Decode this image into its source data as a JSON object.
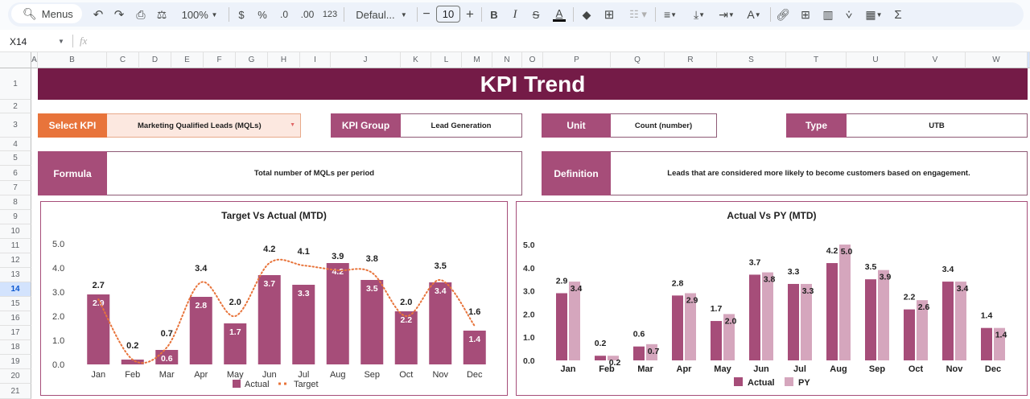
{
  "toolbar": {
    "search_label": "Menus",
    "zoom": "100%",
    "currency": "$",
    "percent": "%",
    "decrease_decimal": ".0",
    "increase_decimal": ".00",
    "more_formats": "123",
    "font": "Defaul...",
    "font_size": "10",
    "minus": "−",
    "plus": "+",
    "bold": "B",
    "italic": "I",
    "text_color": "A",
    "sum": "Σ"
  },
  "formula_bar": {
    "cell_ref": "X14",
    "fx": "fx",
    "value": ""
  },
  "columns": [
    "A",
    "B",
    "C",
    "D",
    "E",
    "F",
    "G",
    "H",
    "I",
    "J",
    "K",
    "L",
    "M",
    "N",
    "O",
    "P",
    "Q",
    "R",
    "S",
    "T",
    "U",
    "V",
    "W"
  ],
  "rows": [
    "1",
    "2",
    "3",
    "4",
    "5",
    "6",
    "7",
    "8",
    "9",
    "10",
    "11",
    "12",
    "13",
    "14",
    "15",
    "16",
    "17",
    "18",
    "19",
    "20",
    "21"
  ],
  "selected_row": "14",
  "sheet": {
    "title": "KPI Trend",
    "select_kpi": {
      "label": "Select KPI",
      "value": "Marketing Qualified Leads (MQLs)"
    },
    "kpi_group": {
      "label": "KPI Group",
      "value": "Lead Generation"
    },
    "unit": {
      "label": "Unit",
      "value": "Count (number)"
    },
    "type": {
      "label": "Type",
      "value": "UTB"
    },
    "formula": {
      "label": "Formula",
      "value": "Total number of MQLs per period"
    },
    "definition": {
      "label": "Definition",
      "value": "Leads that are considered more likely to become customers based on engagement."
    }
  },
  "colors": {
    "title_band": "#741b47",
    "label_bg": "#a64d79",
    "select_label_bg": "#e8743b",
    "select_value_bg": "#fce8e0",
    "actual_bar": "#a64d79",
    "py_bar": "#d5a6bd",
    "target_line": "#e8743b"
  },
  "chart_data": [
    {
      "type": "bar",
      "title": "Target Vs Actual (MTD)",
      "categories": [
        "Jan",
        "Feb",
        "Mar",
        "Apr",
        "May",
        "Jun",
        "Jul",
        "Aug",
        "Sep",
        "Oct",
        "Nov",
        "Dec"
      ],
      "series": [
        {
          "name": "Actual",
          "kind": "bar",
          "values": [
            2.9,
            0.2,
            0.6,
            2.8,
            1.7,
            3.7,
            3.3,
            4.2,
            3.5,
            2.2,
            3.4,
            1.4
          ]
        },
        {
          "name": "Target",
          "kind": "line-dotted",
          "values": [
            2.7,
            0.2,
            0.7,
            3.4,
            2.0,
            4.2,
            4.1,
            3.9,
            3.8,
            2.0,
            3.5,
            1.6
          ]
        }
      ],
      "yticks": [
        "0.0",
        "1.0",
        "2.0",
        "3.0",
        "4.0",
        "5.0"
      ],
      "ylim": [
        0,
        5
      ],
      "legend": [
        "Actual",
        "Target"
      ],
      "legend_position": "bottom",
      "grid": false
    },
    {
      "type": "bar",
      "title": "Actual Vs PY (MTD)",
      "categories": [
        "Jan",
        "Feb",
        "Mar",
        "Apr",
        "May",
        "Jun",
        "Jul",
        "Aug",
        "Sep",
        "Oct",
        "Nov",
        "Dec"
      ],
      "series": [
        {
          "name": "Actual",
          "values": [
            2.9,
            0.2,
            0.6,
            2.8,
            1.7,
            3.7,
            3.3,
            4.2,
            3.5,
            2.2,
            3.4,
            1.4
          ]
        },
        {
          "name": "PY",
          "values": [
            3.4,
            0.2,
            0.7,
            2.9,
            2.0,
            3.8,
            3.3,
            5.0,
            3.9,
            2.6,
            3.4,
            1.4
          ]
        }
      ],
      "yticks": [
        "0.0",
        "1.0",
        "2.0",
        "3.0",
        "4.0",
        "5.0"
      ],
      "ylim": [
        0,
        5
      ],
      "legend": [
        "Actual",
        "PY"
      ],
      "legend_position": "bottom",
      "grid": false
    }
  ]
}
